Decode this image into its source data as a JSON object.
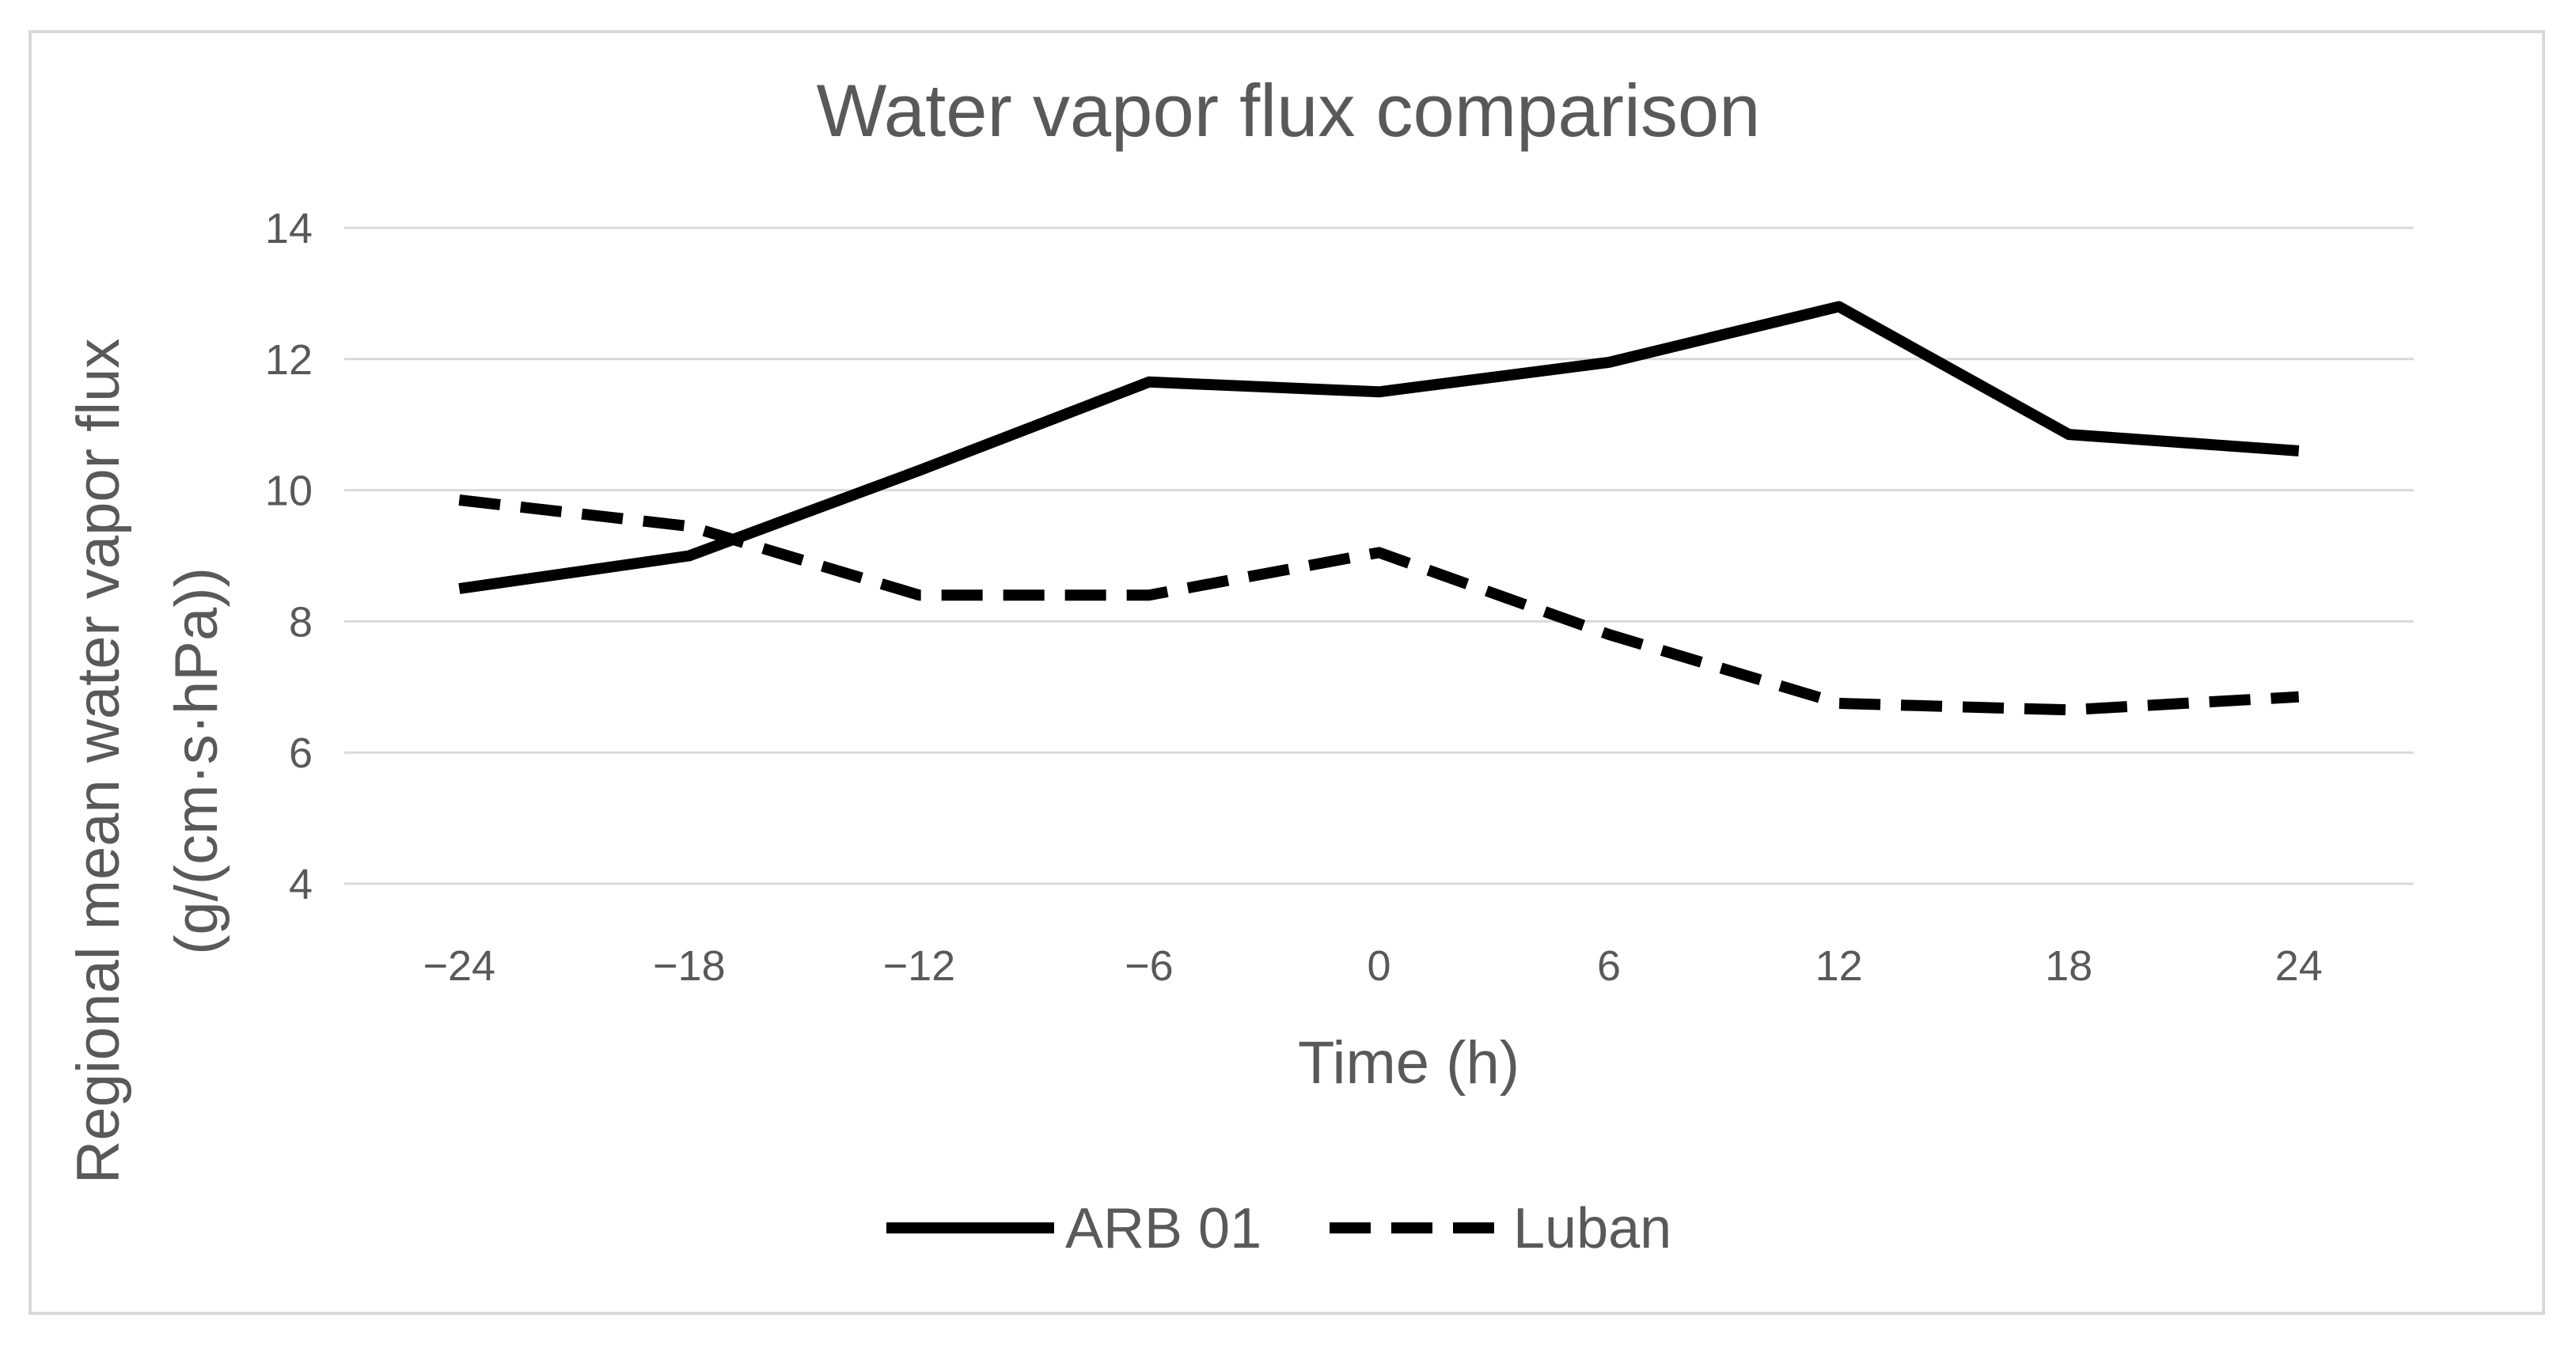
{
  "chart_data": {
    "type": "line",
    "title": "Water vapor flux comparison",
    "xlabel": "Time (h)",
    "ylabel_lines": [
      "Regional mean water vapor flux",
      "(g/(cm·s·hPa))"
    ],
    "x": [
      -24,
      -18,
      -12,
      -6,
      0,
      6,
      12,
      18,
      24
    ],
    "x_tick_labels": [
      "−24",
      "−18",
      "−12",
      "−6",
      "0",
      "6",
      "12",
      "18",
      "24"
    ],
    "y_ticks": [
      4,
      6,
      8,
      10,
      12,
      14
    ],
    "ylim": [
      4,
      14
    ],
    "grid": true,
    "legend_position": "bottom",
    "series": [
      {
        "name": "ARB 01",
        "style": "solid",
        "color": "#000000",
        "values": [
          8.5,
          9.0,
          10.3,
          11.65,
          11.5,
          11.95,
          12.8,
          10.85,
          10.6
        ]
      },
      {
        "name": "Luban",
        "style": "dashed",
        "color": "#000000",
        "values": [
          9.85,
          9.45,
          8.4,
          8.4,
          9.05,
          7.8,
          6.75,
          6.65,
          6.85
        ]
      }
    ]
  }
}
